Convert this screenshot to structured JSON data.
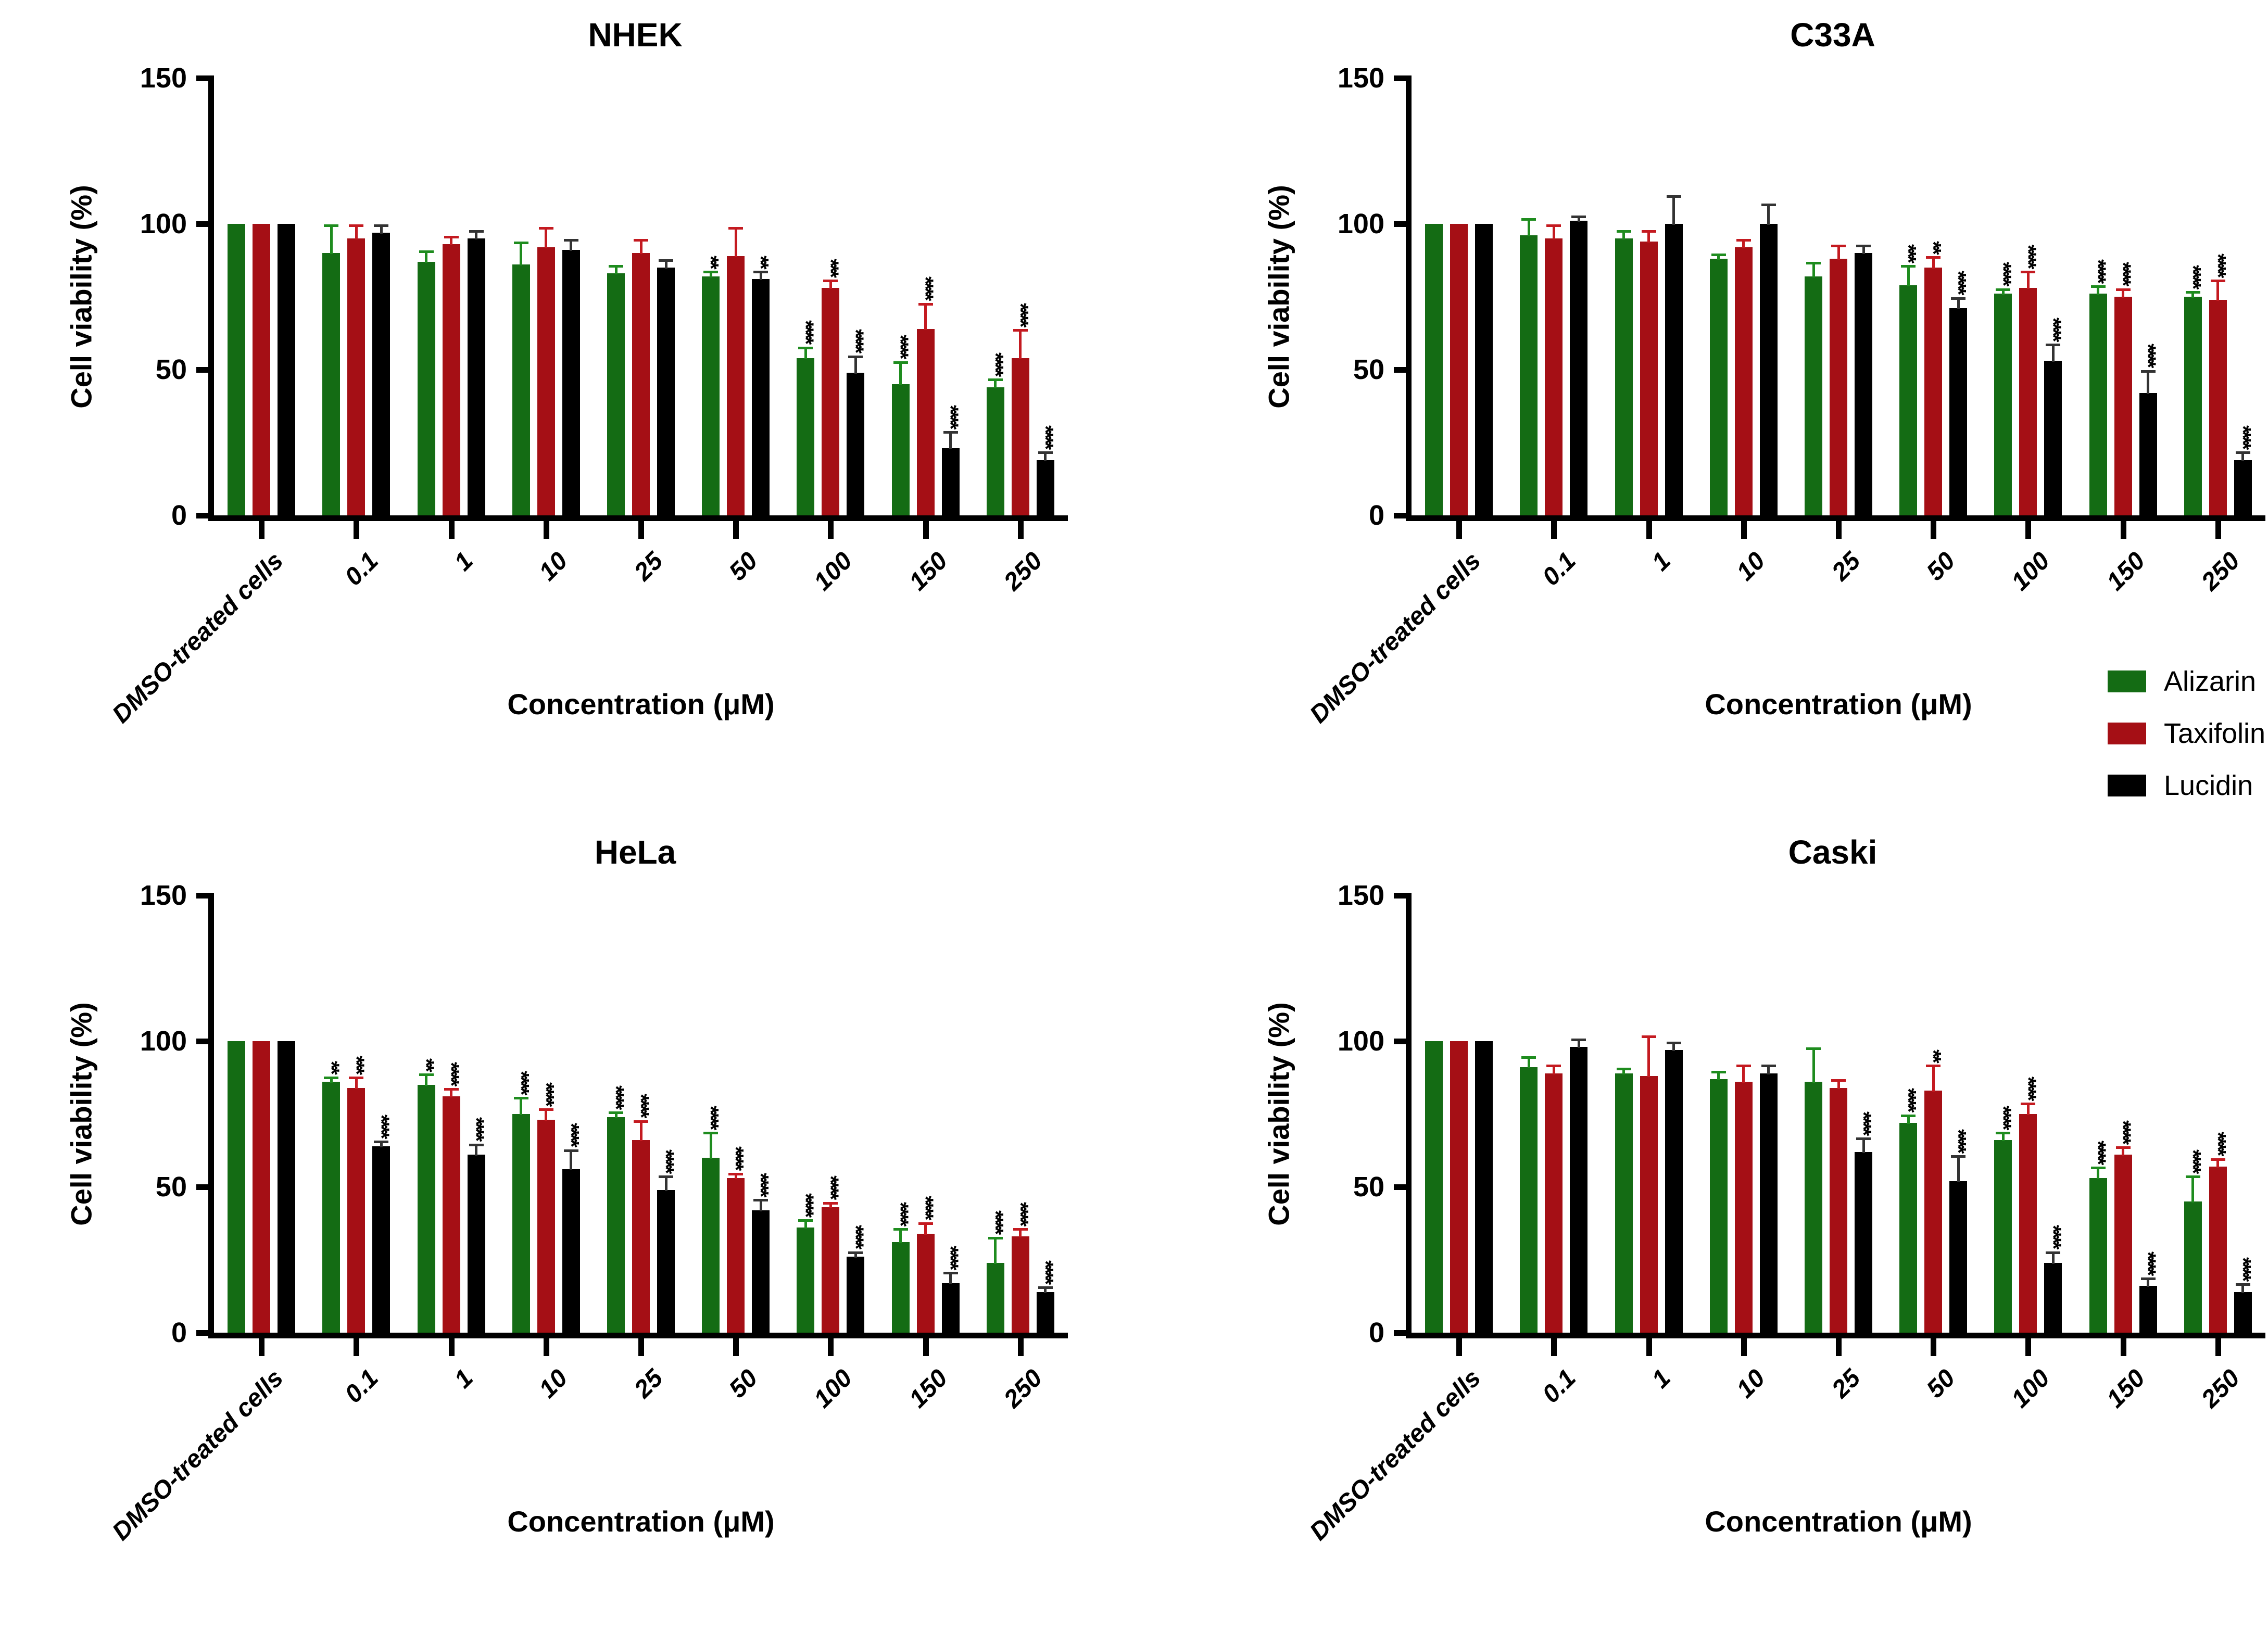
{
  "legend": {
    "items": [
      {
        "label": "Alizarin",
        "color": "#146c14"
      },
      {
        "label": "Taxifolin",
        "color": "#a50f15"
      },
      {
        "label": "Lucidin",
        "color": "#000000"
      }
    ]
  },
  "axes": {
    "ylabel": "Cell viability (%)",
    "xlabel": "Concentration (μM)",
    "yticks": [
      0,
      50,
      100,
      150
    ],
    "ylim": [
      0,
      150
    ],
    "grid": "off",
    "legend_position": "right-middle"
  },
  "chart_data": [
    {
      "type": "bar",
      "title": "NHEK",
      "categories": [
        "DMSO-treated cells",
        "0.1",
        "1",
        "10",
        "25",
        "50",
        "100",
        "150",
        "250"
      ],
      "series": [
        {
          "name": "Alizarin",
          "color": "#146c14",
          "error_color": "#1e8c1e",
          "values": [
            100,
            90,
            87,
            86,
            83,
            82,
            54,
            45,
            44
          ],
          "errors": [
            0,
            9,
            3,
            7,
            2,
            1,
            3,
            7,
            2
          ],
          "sig": [
            "",
            "",
            "",
            "",
            "",
            "**",
            "****",
            "****",
            "****"
          ]
        },
        {
          "name": "Taxifolin",
          "color": "#a50f15",
          "error_color": "#c41a20",
          "values": [
            100,
            95,
            93,
            92,
            90,
            89,
            78,
            64,
            54
          ],
          "errors": [
            0,
            4,
            2,
            6,
            4,
            9,
            2,
            8,
            9
          ],
          "sig": [
            "",
            "",
            "",
            "",
            "",
            "",
            "***",
            "****",
            "****"
          ]
        },
        {
          "name": "Lucidin",
          "color": "#000000",
          "error_color": "#333333",
          "values": [
            100,
            97,
            95,
            91,
            85,
            81,
            49,
            23,
            19
          ],
          "errors": [
            0,
            2,
            2,
            3,
            2,
            2,
            5,
            5,
            2
          ],
          "sig": [
            "",
            "",
            "",
            "",
            "",
            "**",
            "****",
            "****",
            "****"
          ]
        }
      ]
    },
    {
      "type": "bar",
      "title": "C33A",
      "categories": [
        "DMSO-treated cells",
        "0.1",
        "1",
        "10",
        "25",
        "50",
        "100",
        "150",
        "250"
      ],
      "series": [
        {
          "name": "Alizarin",
          "color": "#146c14",
          "error_color": "#1e8c1e",
          "values": [
            100,
            96,
            95,
            88,
            82,
            79,
            76,
            76,
            75
          ],
          "errors": [
            0,
            5,
            2,
            1,
            4,
            6,
            1,
            2,
            1
          ],
          "sig": [
            "",
            "",
            "",
            "",
            "",
            "***",
            "****",
            "****",
            "****"
          ]
        },
        {
          "name": "Taxifolin",
          "color": "#a50f15",
          "error_color": "#c41a20",
          "values": [
            100,
            95,
            94,
            92,
            88,
            85,
            78,
            75,
            74
          ],
          "errors": [
            0,
            4,
            3,
            2,
            4,
            3,
            5,
            2,
            6
          ],
          "sig": [
            "",
            "",
            "",
            "",
            "",
            "**",
            "****",
            "****",
            "****"
          ]
        },
        {
          "name": "Lucidin",
          "color": "#000000",
          "error_color": "#333333",
          "values": [
            100,
            101,
            100,
            100,
            90,
            71,
            53,
            42,
            19
          ],
          "errors": [
            0,
            1,
            9,
            6,
            2,
            3,
            5,
            7,
            2
          ],
          "sig": [
            "",
            "",
            "",
            "",
            "",
            "****",
            "****",
            "****",
            "****"
          ]
        }
      ]
    },
    {
      "type": "bar",
      "title": "HeLa",
      "categories": [
        "DMSO-treated cells",
        "0.1",
        "1",
        "10",
        "25",
        "50",
        "100",
        "150",
        "250"
      ],
      "series": [
        {
          "name": "Alizarin",
          "color": "#146c14",
          "error_color": "#1e8c1e",
          "values": [
            100,
            86,
            85,
            75,
            74,
            60,
            36,
            31,
            24
          ],
          "errors": [
            0,
            1,
            3,
            5,
            1,
            8,
            2,
            4,
            8
          ],
          "sig": [
            "",
            "**",
            "**",
            "****",
            "****",
            "****",
            "****",
            "****",
            "****"
          ]
        },
        {
          "name": "Taxifolin",
          "color": "#a50f15",
          "error_color": "#c41a20",
          "values": [
            100,
            84,
            81,
            73,
            66,
            53,
            43,
            34,
            33
          ],
          "errors": [
            0,
            3,
            2,
            3,
            6,
            1,
            1,
            3,
            2
          ],
          "sig": [
            "",
            "***",
            "****",
            "****",
            "****",
            "****",
            "****",
            "****",
            "****"
          ]
        },
        {
          "name": "Lucidin",
          "color": "#000000",
          "error_color": "#333333",
          "values": [
            100,
            64,
            61,
            56,
            49,
            42,
            26,
            17,
            14
          ],
          "errors": [
            0,
            1,
            3,
            6,
            4,
            3,
            1,
            3,
            1
          ],
          "sig": [
            "",
            "****",
            "****",
            "****",
            "****",
            "****",
            "****",
            "****",
            "****"
          ]
        }
      ]
    },
    {
      "type": "bar",
      "title": "Caski",
      "categories": [
        "DMSO-treated cells",
        "0.1",
        "1",
        "10",
        "25",
        "50",
        "100",
        "150",
        "250"
      ],
      "series": [
        {
          "name": "Alizarin",
          "color": "#146c14",
          "error_color": "#1e8c1e",
          "values": [
            100,
            91,
            89,
            87,
            86,
            72,
            66,
            53,
            45
          ],
          "errors": [
            0,
            3,
            1,
            2,
            11,
            2,
            2,
            3,
            8
          ],
          "sig": [
            "",
            "",
            "",
            "",
            "",
            "****",
            "****",
            "****",
            "****"
          ]
        },
        {
          "name": "Taxifolin",
          "color": "#a50f15",
          "error_color": "#c41a20",
          "values": [
            100,
            89,
            88,
            86,
            84,
            83,
            75,
            61,
            57
          ],
          "errors": [
            0,
            2,
            13,
            5,
            2,
            8,
            3,
            2,
            2
          ],
          "sig": [
            "",
            "",
            "",
            "",
            "",
            "**",
            "****",
            "****",
            "****"
          ]
        },
        {
          "name": "Lucidin",
          "color": "#000000",
          "error_color": "#333333",
          "values": [
            100,
            98,
            97,
            89,
            62,
            52,
            24,
            16,
            14
          ],
          "errors": [
            0,
            2,
            2,
            2,
            4,
            8,
            3,
            2,
            2
          ],
          "sig": [
            "",
            "",
            "",
            "",
            "****",
            "****",
            "****",
            "****",
            "****"
          ]
        }
      ]
    }
  ]
}
